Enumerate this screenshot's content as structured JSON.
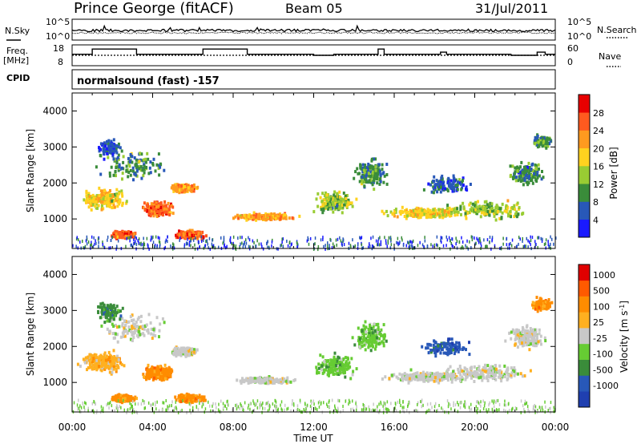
{
  "header": {
    "station": "Prince George (fitACF)",
    "beam": "Beam 05",
    "date": "31/Jul/2011"
  },
  "left_labels": {
    "nsky": "N.Sky",
    "freq": "Freq.",
    "freq_unit": "[MHz]",
    "cpid": "CPID"
  },
  "right_labels": {
    "nsearch": "N.Search",
    "nave": "Nave"
  },
  "cpid_text": "normalsound (fast) -157",
  "panels": {
    "noise": {
      "ytick_top": "10^5",
      "ytick_bottom": "10^0",
      "rtick_top": "10^5",
      "rtick_bottom": "10^0"
    },
    "freq": {
      "yticks": [
        "18",
        "8"
      ],
      "rticks": [
        "60",
        "0"
      ]
    }
  },
  "colors": {
    "power_scale": [
      "#1a1aff",
      "#2858b8",
      "#3a8c3a",
      "#99cc33",
      "#ffd21f",
      "#ff9a1f",
      "#ff5a1f",
      "#e80000"
    ],
    "velocity_scale": [
      "#1f3fb0",
      "#2858b8",
      "#3a8c3a",
      "#66cc33",
      "#c8c8c8",
      "#ffb020",
      "#ff8c00",
      "#ff5a00",
      "#e00000"
    ]
  },
  "chart_data": [
    {
      "type": "heatmap",
      "name": "Power",
      "xlabel": "",
      "ylabel": "Slant Range [km]",
      "x_range_hours": [
        0,
        24
      ],
      "ylim": [
        180,
        4500
      ],
      "yticks": [
        "1000",
        "2000",
        "3000",
        "4000"
      ],
      "colorbar": {
        "label": "Power [dB]",
        "ticks": [
          "4",
          "8",
          "12",
          "16",
          "20",
          "24",
          "28"
        ],
        "range": [
          0,
          30
        ]
      }
    },
    {
      "type": "heatmap",
      "name": "Velocity",
      "xlabel": "Time UT",
      "ylabel": "Slant Range [km]",
      "x_range_hours": [
        0,
        24
      ],
      "ylim": [
        180,
        4500
      ],
      "xticks": [
        "00:00",
        "04:00",
        "08:00",
        "12:00",
        "16:00",
        "20:00",
        "00:00"
      ],
      "yticks": [
        "1000",
        "2000",
        "3000",
        "4000"
      ],
      "colorbar": {
        "label": "Velocity [m s-1]",
        "ticks": [
          "1000",
          "500",
          "100",
          "25",
          "-25",
          "-100",
          "-500",
          "-1000"
        ]
      }
    }
  ],
  "frequency_trace": {
    "type": "line",
    "ylim": [
      8,
      18
    ],
    "segments": [
      [
        0.0,
        13.5
      ],
      [
        1.0,
        16.0
      ],
      [
        3.2,
        13.5
      ],
      [
        6.5,
        16.0
      ],
      [
        8.7,
        13.5
      ],
      [
        12.0,
        13.0
      ],
      [
        13.0,
        13.5
      ],
      [
        15.2,
        16.0
      ],
      [
        15.5,
        13.5
      ],
      [
        18.3,
        14.5
      ],
      [
        18.6,
        13.5
      ],
      [
        21.8,
        13.0
      ],
      [
        23.1,
        14.5
      ],
      [
        23.5,
        13.5
      ],
      [
        24.0,
        13.5
      ]
    ]
  }
}
